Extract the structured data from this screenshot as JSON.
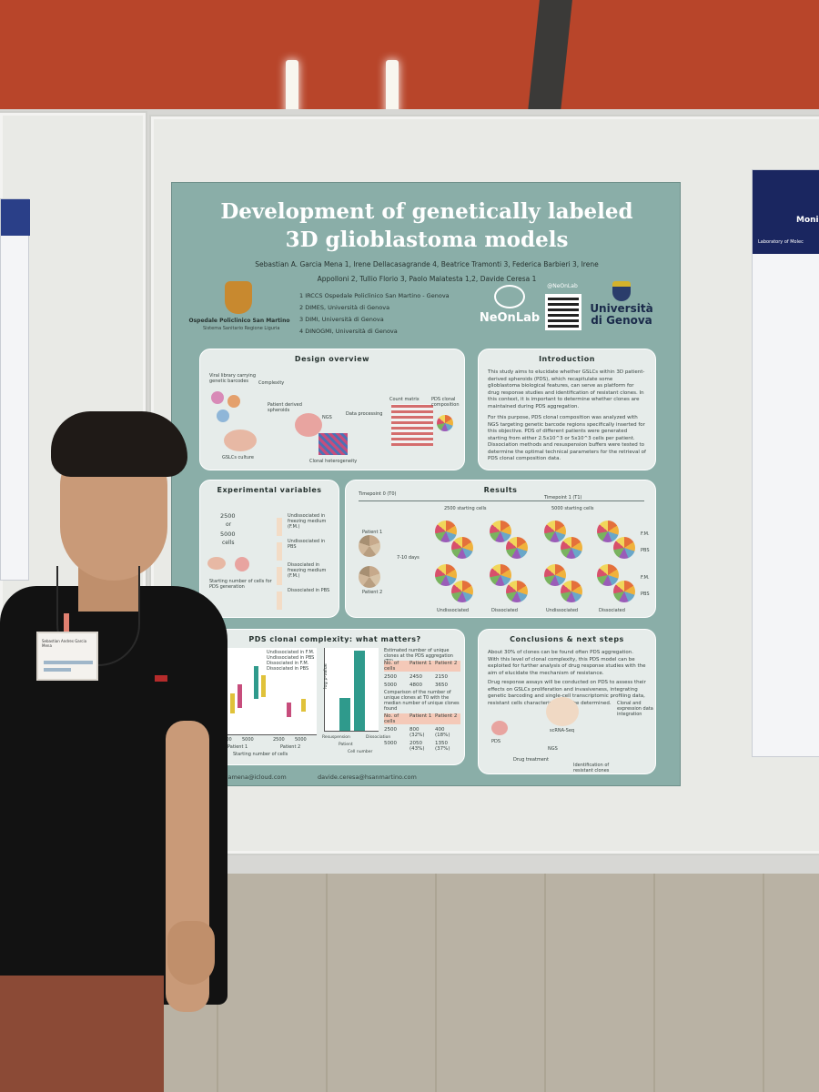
{
  "poster": {
    "title_line1": "Development of genetically labeled",
    "title_line2": "3D glioblastoma models",
    "authors_line1": "Sebastian A. Garcia Mena 1, Irene Dellacasagrande 4, Beatrice Tramonti 3, Federica Barbieri 3, Irene",
    "authors_line2": "Appolloni 2, Tullio Florio 3, Paolo Malatesta 1,2, Davide Ceresa 1",
    "affiliations": [
      "1  IRCCS Ospedale Policlinico San Martino - Genova",
      "2  DIMES, Università di Genova",
      "3  DIMI, Università di Genova",
      "4  DINOGMI, Università di Genova"
    ],
    "hospital_label": "Ospedale Policlinico San Martino",
    "hospital_sub": "Sistema Sanitario Regione Liguria",
    "neonlab_tag": "@NeOnLab",
    "neonlab_name": "NeOnLab",
    "university_line1": "Università",
    "university_line2": "di Genova",
    "sections": {
      "design": {
        "title": "Design overview",
        "labels": [
          "Viral library carrying genetic barcodes",
          "Complexity",
          "Patient derived spheroids",
          "NGS",
          "Data processing",
          "Count matrix",
          "PDS clonal composition",
          "GSLCs culture",
          "Clonal heterogeneity"
        ]
      },
      "intro": {
        "title": "Introduction",
        "p1": "This study aims to elucidate whether GSLCs within 3D patient-derived spheroids (PDS), which recapitulate some glioblastoma biological features, can serve as platform for drug response studies and identification of resistant clones. In this context, it is important to determine whether clones are maintained during PDS aggregation.",
        "p2": "For this purpose, PDS clonal composition was analyzed with NGS targeting genetic barcode regions specifically inserted for this objective. PDS of different patients were generated starting from either 2.5x10^3 or 5x10^3 cells per patient. Dissociation methods and resuspension buffers were tested to determine the optimal technical parameters for the retrieval of PDS clonal composition data."
      },
      "experimental": {
        "title": "Experimental variables",
        "cells_a": "2500",
        "cells_or": "or",
        "cells_b": "5000",
        "cells_word": "cells",
        "starting_label": "Starting number of cells for PDS generation",
        "conditions": [
          "Undissociated in freezing medium (F.M.)",
          "Undissociated in PBS",
          "Dissociated in freezing medium (F.M.)",
          "Dissociated in PBS"
        ]
      },
      "results": {
        "title": "Results",
        "t0": "Timepoint 0 (T0)",
        "t1": "Timepoint 1 (T1)",
        "col_a": "2500 starting cells",
        "col_b": "5000 starting cells",
        "patient1": "Patient 1",
        "patient2": "Patient 2",
        "days": "7-10 days",
        "undissociated": "Undissociated",
        "dissociated": "Dissociated",
        "fm": "F.M.",
        "pbs": "PBS"
      },
      "complexity": {
        "title": "PDS clonal complexity: what matters?",
        "legend": [
          "Undissociated in F.M.",
          "Undissociated in PBS",
          "Dissociated in F.M.",
          "Dissociated in PBS"
        ],
        "xlabel": "Starting number of cells",
        "ticks": [
          "2500",
          "5000",
          "2500",
          "5000"
        ],
        "patient1": "Patient 1",
        "patient2": "Patient 2",
        "ylabel2": "log p-value",
        "bar_labels": [
          "Resuspension",
          "Patient",
          "Cell number",
          "Dissociation"
        ],
        "table1_caption": "Estimated number of unique clones at the PDS aggregation (T0)",
        "table1_header": [
          "No. of cells",
          "Patient 1",
          "Patient 2"
        ],
        "table1_rows": [
          [
            "2500",
            "2450",
            "2150"
          ],
          [
            "5000",
            "4800",
            "3650"
          ]
        ],
        "table2_caption": "Comparison of the number of unique clones at T0 with the median number of unique clones found",
        "table2_header": [
          "No. of cells",
          "Patient 1",
          "Patient 2"
        ],
        "table2_rows": [
          [
            "2500",
            "800 (32%)",
            "400 (18%)"
          ],
          [
            "5000",
            "2050 (43%)",
            "1350 (37%)"
          ]
        ]
      },
      "conclusions": {
        "title": "Conclusions & next steps",
        "p1": "About 30% of clones can be found often PDS aggregation. With this level of clonal complexity, this PDS model can be exploited for further analysis of drug response studies with the aim of elucidate the mechanism of resistance.",
        "p2": "Drug response assays will be conducted on PDS to assess their effects on GSLCs proliferation and invasiveness, integrating genetic barcoding and single-cell transcriptomic profiling data, resistant cells characteristics can be determined.",
        "labels": [
          "scRNA-Seq",
          "Clonal and expression data integration",
          "PDS",
          "Drug treatment",
          "NGS",
          "Identification of resistant clones"
        ]
      }
    },
    "emails": [
      "s.garciamena@icloud.com",
      "davide.ceresa@hsanmartino.com"
    ]
  },
  "side_poster": {
    "title": "Moni",
    "subtitle": "Laboratory of Molec"
  },
  "badge": {
    "name": "Sebastian Andres Garcia Mena"
  },
  "colors": {
    "ceiling": "#b8452a",
    "poster_bg": "#8aaea8",
    "panel_bg": "#e6ecea",
    "side_poster_head": "#1a2660"
  }
}
